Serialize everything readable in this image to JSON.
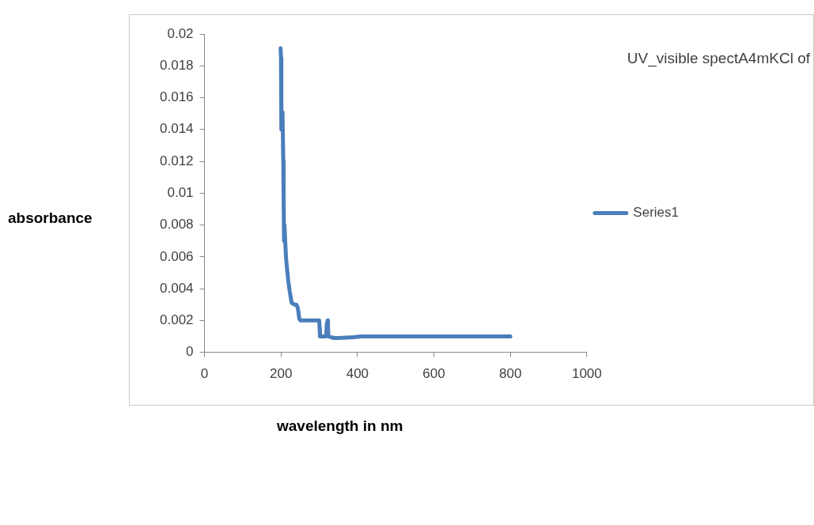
{
  "chart_data": {
    "type": "line",
    "title": "UV_visible spectA4mKCl of",
    "xlabel": "wavelength in nm",
    "ylabel": "absorbance",
    "x": [
      199,
      200,
      201,
      204,
      206,
      207,
      208,
      209,
      210,
      213,
      216,
      219,
      223,
      228,
      235,
      240,
      244,
      248,
      251,
      260,
      280,
      300,
      301,
      302,
      310,
      318,
      320,
      322,
      323,
      324,
      330,
      340,
      351,
      370,
      390,
      409,
      500,
      600,
      700,
      800
    ],
    "series": [
      {
        "name": "Series1",
        "color": "#4a7ebb",
        "values": [
          0.0191,
          0.0185,
          0.014,
          0.0151,
          0.012,
          0.0095,
          0.007,
          0.008,
          0.0075,
          0.006,
          0.0052,
          0.0045,
          0.0038,
          0.0031,
          0.003,
          0.003,
          0.0028,
          0.0021,
          0.002,
          0.002,
          0.002,
          0.002,
          0.0015,
          0.001,
          0.001,
          0.001,
          0.0018,
          0.002,
          0.0015,
          0.001,
          0.00095,
          0.0009,
          0.0009,
          0.00092,
          0.00095,
          0.001,
          0.001,
          0.001,
          0.001,
          0.001
        ]
      }
    ],
    "xlim": [
      0,
      1000
    ],
    "xticks": [
      0,
      200,
      400,
      600,
      800,
      1000
    ],
    "ylim": [
      0,
      0.02
    ],
    "yticks": [
      0,
      0.002,
      0.004,
      0.006,
      0.008,
      0.01,
      0.012,
      0.014,
      0.016,
      0.018,
      0.02
    ],
    "grid": false,
    "legend": "right",
    "marker": "none",
    "line_style": "solid"
  }
}
